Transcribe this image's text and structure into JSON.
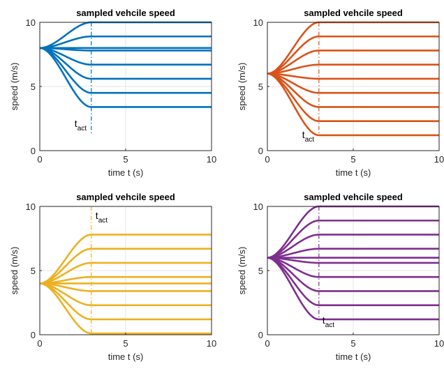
{
  "chart_data": [
    {
      "type": "line",
      "title": "sampled vehcile speed",
      "xlabel": "time t (s)",
      "ylabel": "speed (m/s)",
      "xlim": [
        0,
        10
      ],
      "ylim": [
        0,
        10
      ],
      "xticks": [
        0,
        5,
        10
      ],
      "yticks": [
        0,
        5,
        10
      ],
      "grid": true,
      "color": "#0072BD",
      "initial_speed": 8,
      "t_act": 3,
      "t_act_label": "t",
      "t_act_subscript": "act",
      "t_act_label_pos": "bottom-left",
      "final_speeds": [
        10,
        8.9,
        8.0,
        7.8,
        6.7,
        5.6,
        4.5,
        3.4
      ]
    },
    {
      "type": "line",
      "title": "sampled vehcile speed",
      "xlabel": "time t (s)",
      "ylabel": "speed (m/s)",
      "xlim": [
        0,
        10
      ],
      "ylim": [
        0,
        10
      ],
      "xticks": [
        0,
        5,
        10
      ],
      "yticks": [
        0,
        5,
        10
      ],
      "grid": true,
      "color": "#D95319",
      "initial_speed": 6,
      "t_act": 3,
      "t_act_label": "t",
      "t_act_subscript": "act",
      "t_act_label_pos": "bottom-left",
      "final_speeds": [
        10,
        8.9,
        7.8,
        6.7,
        5.6,
        4.5,
        3.4,
        2.3,
        1.2
      ]
    },
    {
      "type": "line",
      "title": "sampled vehcile speed",
      "xlabel": "time t (s)",
      "ylabel": "speed (m/s)",
      "xlim": [
        0,
        10
      ],
      "ylim": [
        0,
        10
      ],
      "xticks": [
        0,
        5,
        10
      ],
      "yticks": [
        0,
        5,
        10
      ],
      "grid": true,
      "color": "#EDB120",
      "initial_speed": 4,
      "t_act": 3,
      "t_act_label": "t",
      "t_act_subscript": "act",
      "t_act_label_pos": "top-right",
      "final_speeds": [
        7.8,
        6.7,
        5.6,
        4.5,
        4.0,
        3.4,
        2.3,
        1.2,
        0.1
      ]
    },
    {
      "type": "line",
      "title": "sampled vehcile speed",
      "xlabel": "time t (s)",
      "ylabel": "speed (m/s)",
      "xlim": [
        0,
        10
      ],
      "ylim": [
        0,
        10
      ],
      "xticks": [
        0,
        5,
        10
      ],
      "yticks": [
        0,
        5,
        10
      ],
      "grid": true,
      "color": "#7E2F8E",
      "initial_speed": 6,
      "t_act": 3,
      "t_act_label": "t",
      "t_act_subscript": "act",
      "t_act_label_pos": "bottom-right",
      "final_speeds": [
        10,
        8.9,
        7.8,
        6.7,
        6.0,
        5.6,
        4.5,
        3.4,
        2.3,
        1.2
      ]
    }
  ]
}
